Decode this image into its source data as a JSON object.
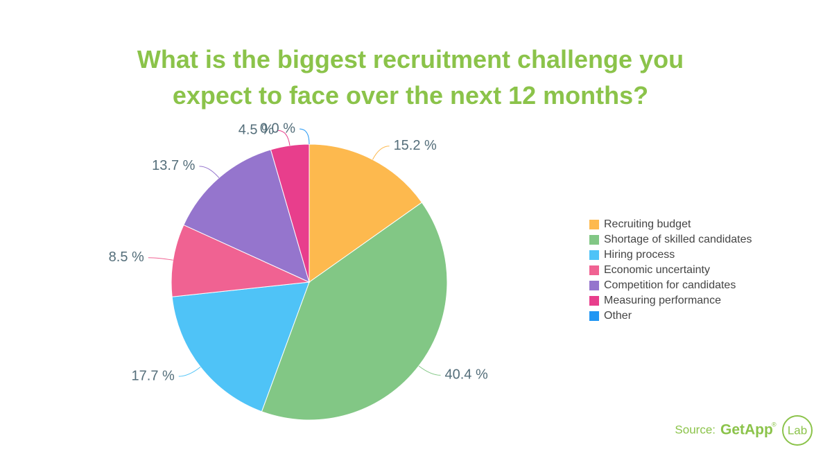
{
  "chart_data": {
    "type": "pie",
    "title": "What is the biggest recruitment challenge you expect to face over the next 12 months?",
    "categories": [
      "Recruiting budget",
      "Shortage of skilled candidates",
      "Hiring process",
      "Economic uncertainty",
      "Competition for candidates",
      "Measuring performance",
      "Other"
    ],
    "values": [
      15.2,
      40.4,
      17.7,
      8.5,
      13.7,
      4.5,
      0.0
    ],
    "value_labels": [
      "15.2 %",
      "40.4 %",
      "17.7 %",
      "8.5 %",
      "13.7 %",
      "4.5 %",
      "0.0 %"
    ],
    "colors": [
      "#fdb94e",
      "#82c785",
      "#4fc3f7",
      "#f06292",
      "#9575cd",
      "#e83e8c",
      "#2196f3"
    ],
    "legend": "right",
    "source": "Source:",
    "source_brand": "GetApp",
    "source_brand_mark": "®",
    "source_lab": "Lab"
  }
}
